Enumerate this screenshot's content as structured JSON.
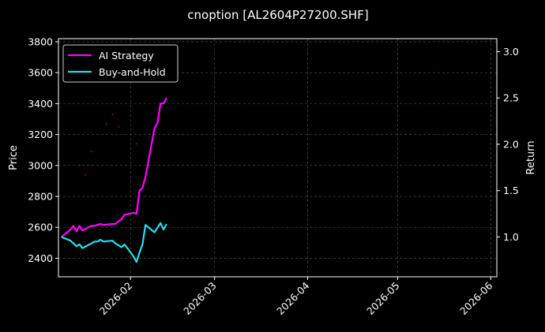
{
  "chart_data": {
    "type": "line",
    "title": "cnoption [AL2604P27200.SHF]",
    "ylabel_left": "Price",
    "ylabel_right": "Return",
    "xlabel": "",
    "grid": true,
    "legend_position": "top-left",
    "x_ticks": [
      "2026-02",
      "2026-03",
      "2026-04",
      "2026-05",
      "2026-06"
    ],
    "y_left_ticks": [
      2400,
      2600,
      2800,
      3000,
      3200,
      3400,
      3600,
      3800
    ],
    "y_right_ticks": [
      1.0,
      1.5,
      2.0,
      2.5,
      3.0
    ],
    "xlim": [
      "2026-01-08",
      "2026-06-03"
    ],
    "ylim_left": [
      2280,
      3820
    ],
    "ylim_right": [
      0.57,
      3.14
    ],
    "series": [
      {
        "name": "AI Strategy",
        "axis": "right",
        "color": "#ff00ff",
        "x": [
          "2026-01-09",
          "2026-01-12",
          "2026-01-13",
          "2026-01-14",
          "2026-01-15",
          "2026-01-16",
          "2026-01-19",
          "2026-01-20",
          "2026-01-21",
          "2026-01-22",
          "2026-01-23",
          "2026-01-26",
          "2026-01-27",
          "2026-01-28",
          "2026-01-29",
          "2026-01-30",
          "2026-02-02",
          "2026-02-03",
          "2026-02-04",
          "2026-02-05",
          "2026-02-06",
          "2026-02-09",
          "2026-02-10",
          "2026-02-11",
          "2026-02-12",
          "2026-02-13"
        ],
        "values": [
          1.0,
          1.08,
          1.12,
          1.06,
          1.12,
          1.07,
          1.12,
          1.12,
          1.13,
          1.14,
          1.13,
          1.14,
          1.14,
          1.17,
          1.19,
          1.24,
          1.26,
          1.25,
          1.5,
          1.53,
          1.65,
          2.17,
          2.23,
          2.44,
          2.44,
          2.5
        ]
      },
      {
        "name": "Buy-and-Hold",
        "axis": "right",
        "color": "#22e0ee",
        "x": [
          "2026-01-09",
          "2026-01-12",
          "2026-01-13",
          "2026-01-14",
          "2026-01-15",
          "2026-01-16",
          "2026-01-19",
          "2026-01-20",
          "2026-01-21",
          "2026-01-22",
          "2026-01-23",
          "2026-01-26",
          "2026-01-27",
          "2026-01-28",
          "2026-01-29",
          "2026-01-30",
          "2026-02-02",
          "2026-02-03",
          "2026-02-04",
          "2026-02-05",
          "2026-02-06",
          "2026-02-09",
          "2026-02-10",
          "2026-02-11",
          "2026-02-12",
          "2026-02-13"
        ],
        "values": [
          1.0,
          0.96,
          0.93,
          0.9,
          0.92,
          0.88,
          0.93,
          0.95,
          0.95,
          0.97,
          0.95,
          0.96,
          0.93,
          0.91,
          0.89,
          0.92,
          0.79,
          0.73,
          0.83,
          0.92,
          1.13,
          1.05,
          1.1,
          1.15,
          1.08,
          1.14
        ]
      },
      {
        "name": "",
        "axis": "left",
        "type": "scatter",
        "color": "#cc0044",
        "x": [
          "2026-01-15",
          "2026-01-17",
          "2026-01-19",
          "2026-01-24",
          "2026-01-26",
          "2026-01-28",
          "2026-02-03"
        ],
        "values": [
          3000,
          2940,
          3090,
          3270,
          3330,
          3250,
          3140
        ]
      }
    ]
  }
}
